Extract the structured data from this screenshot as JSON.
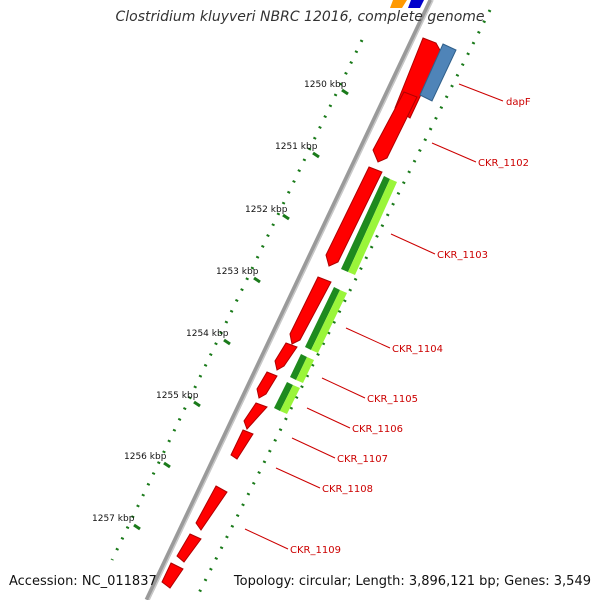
{
  "title": "Clostridium kluyveri NBRC 12016, complete genome",
  "accession_text": "Accession: NC_011837",
  "summary_text": "Topology: circular; Length: 3,896,121 bp; Genes: 3,549",
  "colors": {
    "backbone": "#999999",
    "cds": "#ff0000",
    "trna": "#4f84b8",
    "go_dark": "#1e8a1e",
    "go_light": "#9af53a",
    "ticks": "#1a7a1a",
    "label_line": "#cc0000",
    "top_orange": "#ff9900",
    "top_blue": "#0000cc"
  },
  "kbp_ticks": [
    "1250 kbp",
    "1251 kbp",
    "1252 kbp",
    "1253 kbp",
    "1254 kbp",
    "1255 kbp",
    "1256 kbp",
    "1257 kbp"
  ],
  "gene_labels": [
    "dapF",
    "CKR_1102",
    "CKR_1103",
    "CKR_1104",
    "CKR_1105",
    "CKR_1106",
    "CKR_1107",
    "CKR_1108",
    "CKR_1109"
  ]
}
